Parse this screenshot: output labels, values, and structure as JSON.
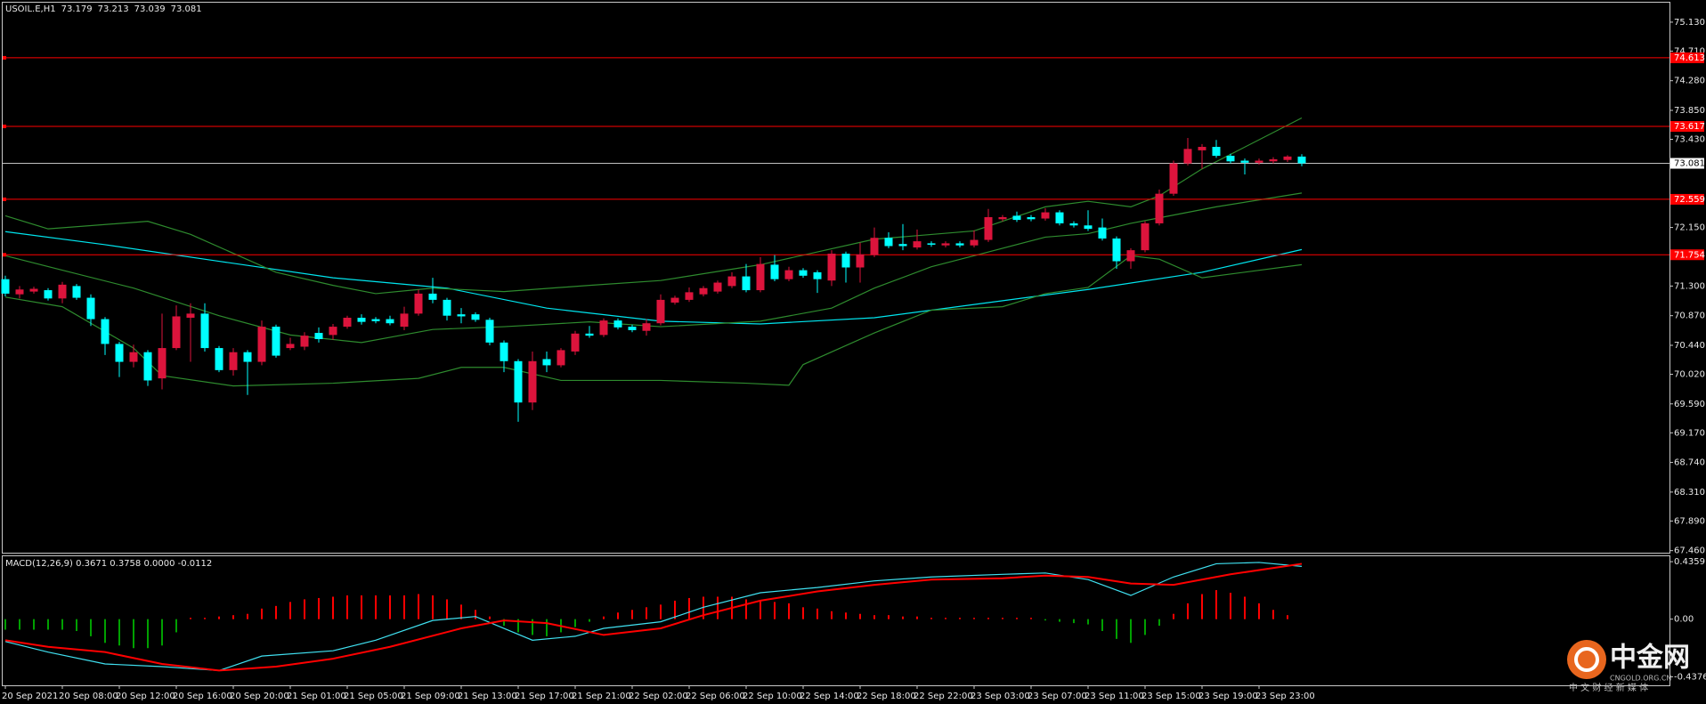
{
  "chart_data": {
    "type": "candlestick",
    "symbol": "USOIL.E,H1",
    "categories": [
      "20 Sep 2021",
      null,
      null,
      null,
      "20 Sep 08:00",
      null,
      null,
      null,
      "20 Sep 12:00",
      null,
      null,
      null,
      "20 Sep 16:00",
      null,
      null,
      null,
      "20 Sep 20:00",
      null,
      null,
      null,
      "21 Sep 01:00",
      null,
      null,
      null,
      "21 Sep 05:00",
      null,
      null,
      null,
      "21 Sep 09:00",
      null,
      null,
      null,
      "21 Sep 13:00",
      null,
      null,
      null,
      "21 Sep 17:00",
      null,
      null,
      null,
      "21 Sep 21:00",
      null,
      null,
      null,
      "22 Sep 02:00",
      null,
      null,
      null,
      "22 Sep 06:00",
      null,
      null,
      null,
      "22 Sep 10:00",
      null,
      null,
      null,
      "22 Sep 14:00",
      null,
      null,
      null,
      "22 Sep 18:00",
      null,
      null,
      null,
      "22 Sep 22:00",
      null,
      null,
      null,
      "23 Sep 03:00",
      null,
      null,
      null,
      "23 Sep 07:00",
      null,
      null,
      null,
      "23 Sep 11:00",
      null,
      null,
      null,
      "23 Sep 15:00",
      null,
      null,
      null,
      "23 Sep 19:00",
      null,
      null,
      null,
      "23 Sep 23:00",
      null,
      null,
      null
    ],
    "open": [
      71.4,
      71.18,
      71.22,
      71.24,
      71.12,
      71.3,
      71.13,
      70.82,
      70.46,
      70.2,
      70.34,
      69.96,
      70.4,
      70.84,
      70.9,
      70.4,
      70.08,
      70.34,
      70.2,
      70.71,
      70.4,
      70.42,
      70.62,
      70.59,
      70.71,
      70.84,
      70.82,
      70.82,
      70.71,
      70.9,
      71.19,
      71.1,
      70.89,
      70.89,
      70.81,
      70.48,
      70.21,
      69.61,
      70.24,
      70.15,
      70.35,
      70.61,
      70.59,
      70.8,
      70.71,
      70.65,
      70.76,
      71.06,
      71.1,
      71.18,
      71.22,
      71.3,
      71.44,
      71.24,
      71.61,
      71.4,
      71.53,
      71.5,
      71.38,
      71.77,
      71.57,
      71.75,
      72.0,
      71.91,
      71.86,
      71.92,
      71.89,
      71.92,
      71.89,
      71.97,
      72.27,
      72.32,
      72.3,
      72.28,
      72.37,
      72.21,
      72.18,
      72.15,
      71.99,
      71.66,
      71.82,
      72.21,
      72.64,
      73.08,
      73.27,
      73.32,
      73.19,
      73.12,
      73.09,
      73.11,
      73.13,
      73.179
    ],
    "high": [
      71.45,
      71.3,
      71.29,
      71.27,
      71.36,
      71.33,
      71.18,
      70.85,
      70.49,
      70.45,
      70.37,
      70.9,
      71.02,
      71.05,
      71.05,
      70.43,
      70.4,
      70.37,
      70.8,
      70.74,
      70.55,
      70.63,
      70.7,
      70.75,
      70.87,
      70.89,
      70.85,
      70.87,
      71.0,
      71.25,
      71.42,
      71.13,
      70.98,
      70.92,
      70.84,
      70.51,
      70.24,
      70.35,
      70.35,
      70.4,
      70.65,
      70.72,
      70.83,
      70.83,
      70.74,
      70.82,
      71.18,
      71.16,
      71.28,
      71.3,
      71.38,
      71.5,
      71.62,
      71.72,
      71.75,
      71.58,
      71.56,
      71.53,
      71.82,
      71.8,
      71.93,
      72.15,
      72.08,
      72.2,
      72.12,
      71.95,
      71.95,
      71.95,
      72.11,
      72.42,
      72.33,
      72.38,
      72.33,
      72.43,
      72.4,
      72.24,
      72.4,
      72.28,
      72.02,
      71.85,
      72.24,
      72.7,
      73.12,
      73.45,
      73.36,
      73.42,
      73.22,
      73.15,
      73.15,
      73.17,
      73.2,
      73.213
    ],
    "low": [
      71.15,
      71.12,
      71.19,
      71.09,
      71.05,
      71.1,
      70.72,
      70.3,
      69.98,
      70.12,
      69.85,
      69.8,
      70.37,
      70.2,
      70.35,
      70.05,
      70.0,
      69.72,
      70.15,
      70.26,
      70.37,
      70.37,
      70.48,
      70.52,
      70.68,
      70.74,
      70.76,
      70.73,
      70.66,
      70.87,
      71.05,
      70.8,
      70.76,
      70.78,
      70.44,
      70.05,
      69.33,
      69.5,
      70.05,
      70.12,
      70.3,
      70.55,
      70.56,
      70.67,
      70.63,
      70.58,
      70.73,
      71.03,
      71.07,
      71.15,
      71.19,
      71.27,
      71.21,
      71.21,
      71.37,
      71.37,
      71.42,
      71.2,
      71.3,
      71.35,
      71.35,
      71.72,
      71.85,
      71.82,
      71.83,
      71.87,
      71.86,
      71.86,
      71.86,
      71.94,
      72.24,
      72.23,
      72.24,
      72.25,
      72.18,
      72.15,
      72.1,
      71.96,
      71.55,
      71.55,
      71.79,
      72.18,
      72.61,
      73.05,
      73.0,
      73.16,
      73.08,
      72.92,
      73.06,
      73.08,
      73.1,
      73.039
    ],
    "close": [
      71.19,
      71.25,
      71.26,
      71.12,
      71.32,
      71.13,
      70.82,
      70.46,
      70.2,
      70.34,
      69.93,
      70.4,
      70.86,
      70.9,
      70.4,
      70.08,
      70.34,
      70.2,
      70.71,
      70.29,
      70.46,
      70.58,
      70.53,
      70.71,
      70.84,
      70.78,
      70.79,
      70.76,
      70.9,
      71.19,
      71.1,
      70.87,
      70.86,
      70.81,
      70.48,
      70.21,
      69.61,
      70.21,
      70.15,
      70.37,
      70.61,
      70.58,
      70.8,
      70.7,
      70.66,
      70.76,
      71.1,
      71.13,
      71.21,
      71.27,
      71.35,
      71.44,
      71.24,
      71.62,
      71.4,
      71.53,
      71.45,
      71.4,
      71.77,
      71.57,
      71.76,
      72.0,
      71.88,
      71.88,
      71.95,
      71.9,
      71.92,
      71.89,
      71.97,
      72.3,
      72.3,
      72.26,
      72.27,
      72.37,
      72.21,
      72.18,
      72.13,
      71.99,
      71.66,
      71.82,
      72.21,
      72.64,
      73.08,
      73.29,
      73.32,
      73.19,
      73.11,
      73.09,
      73.12,
      73.14,
      73.18,
      73.081
    ],
    "up_color": "#dc143c",
    "down_color": "#00ffff",
    "current_color": "#c0c0c0",
    "ylim": [
      67.43,
      75.4
    ],
    "yticks": [
      {
        "value": 75.13,
        "label": "75.130"
      },
      {
        "value": 74.71,
        "label": "74.710"
      },
      {
        "value": 74.28,
        "label": "74.280"
      },
      {
        "value": 73.85,
        "label": "73.850"
      },
      {
        "value": 73.43,
        "label": "73.430"
      },
      {
        "value": 72.15,
        "label": "72.150"
      },
      {
        "value": 71.3,
        "label": "71.300"
      },
      {
        "value": 70.87,
        "label": "70.870"
      },
      {
        "value": 70.44,
        "label": "70.440"
      },
      {
        "value": 70.02,
        "label": "70.020"
      },
      {
        "value": 69.59,
        "label": "69.590"
      },
      {
        "value": 69.17,
        "label": "69.170"
      },
      {
        "value": 68.74,
        "label": "68.740"
      },
      {
        "value": 68.31,
        "label": "68.310"
      },
      {
        "value": 67.89,
        "label": "67.890"
      },
      {
        "value": 67.46,
        "label": "67.460"
      }
    ],
    "levels": {
      "color": "#ff0000",
      "values": [
        74.613,
        73.617,
        72.559,
        71.754
      ]
    },
    "overlays": [
      {
        "color": "#00e5ee",
        "x": [
          0,
          7,
          15,
          23,
          31,
          38,
          46,
          53,
          61,
          69,
          76,
          84,
          91
        ],
        "values": [
          72.09,
          71.9,
          71.66,
          71.42,
          71.27,
          70.98,
          70.79,
          70.75,
          70.84,
          71.06,
          71.25,
          71.5,
          71.83
        ]
      },
      {
        "color": "#2e8b2e",
        "x": [
          0,
          3,
          10,
          13,
          19,
          23,
          26,
          30,
          35,
          41,
          46,
          53,
          61,
          68,
          73,
          76,
          79,
          81,
          84,
          91
        ],
        "values": [
          72.32,
          72.13,
          72.24,
          72.05,
          71.5,
          71.31,
          71.19,
          71.27,
          71.22,
          71.31,
          71.38,
          71.61,
          71.98,
          72.1,
          72.45,
          72.53,
          72.45,
          72.61,
          73.0,
          73.74
        ]
      },
      {
        "color": "#2e8b2e",
        "x": [
          0,
          4,
          9,
          15,
          20,
          25,
          30,
          35,
          41,
          46,
          53,
          58,
          61,
          65,
          68,
          73,
          76,
          79,
          81,
          85,
          91
        ],
        "values": [
          71.74,
          71.53,
          71.27,
          70.87,
          70.59,
          70.48,
          70.67,
          70.71,
          70.78,
          70.71,
          70.79,
          70.98,
          71.27,
          71.58,
          71.74,
          72.01,
          72.06,
          72.21,
          72.29,
          72.45,
          72.65
        ]
      },
      {
        "color": "#2e8b2e",
        "x": [
          0,
          4,
          9,
          11,
          16,
          23,
          29,
          32,
          35,
          39,
          46,
          52,
          55,
          56,
          61,
          65,
          70,
          73,
          76,
          79,
          81,
          84,
          91
        ],
        "values": [
          71.14,
          71.0,
          70.4,
          70.0,
          69.85,
          69.89,
          69.96,
          70.12,
          70.12,
          69.93,
          69.93,
          69.89,
          69.86,
          70.16,
          70.62,
          70.95,
          71.0,
          71.19,
          71.28,
          71.74,
          71.69,
          71.42,
          71.61
        ]
      }
    ],
    "macd": {
      "title": "MACD(12,26,9) 0.3671 0.3758 0.0000 -0.0112",
      "ylim": [
        -0.502,
        0.477
      ],
      "yticks": [
        {
          "value": 0.4359,
          "label": "0.4359"
        },
        {
          "value": 0,
          "label": "0.00"
        },
        {
          "value": -0.4376,
          "label": "-0.4376"
        }
      ],
      "up_color": "#ff0000",
      "down_color": "#00a000",
      "histogram": [
        -0.08,
        -0.08,
        -0.08,
        -0.08,
        -0.08,
        -0.09,
        -0.13,
        -0.18,
        -0.2,
        -0.22,
        -0.22,
        -0.2,
        -0.1,
        0.01,
        0.01,
        0.02,
        0.03,
        0.04,
        0.08,
        0.1,
        0.13,
        0.15,
        0.16,
        0.17,
        0.18,
        0.18,
        0.18,
        0.18,
        0.18,
        0.19,
        0.18,
        0.15,
        0.11,
        0.07,
        0.02,
        -0.05,
        -0.1,
        -0.12,
        -0.13,
        -0.1,
        -0.06,
        -0.02,
        0.02,
        0.05,
        0.07,
        0.09,
        0.11,
        0.14,
        0.16,
        0.17,
        0.17,
        0.17,
        0.15,
        0.14,
        0.13,
        0.12,
        0.09,
        0.08,
        0.06,
        0.05,
        0.04,
        0.03,
        0.03,
        0.02,
        0.02,
        0.01,
        0.01,
        0.01,
        0.01,
        0.01,
        0.01,
        0.01,
        0.01,
        -0.01,
        -0.02,
        -0.03,
        -0.04,
        -0.09,
        -0.15,
        -0.18,
        -0.12,
        -0.05,
        0.04,
        0.12,
        0.19,
        0.22,
        0.2,
        0.17,
        0.12,
        0.07,
        0.03,
        0
      ],
      "lines": [
        {
          "color": "#40e0f0",
          "x": [
            0,
            3,
            7,
            11,
            15,
            18,
            23,
            26,
            30,
            33,
            35,
            37,
            40,
            42,
            46,
            49,
            53,
            57,
            61,
            65,
            70,
            73,
            76,
            79,
            82,
            85,
            88,
            91
          ],
          "values": [
            -0.17,
            -0.25,
            -0.34,
            -0.36,
            -0.39,
            -0.28,
            -0.24,
            -0.16,
            -0.01,
            0.02,
            -0.07,
            -0.16,
            -0.13,
            -0.07,
            -0.02,
            0.09,
            0.2,
            0.24,
            0.29,
            0.32,
            0.34,
            0.35,
            0.3,
            0.18,
            0.32,
            0.42,
            0.43,
            0.4
          ]
        },
        {
          "color": "#ff0000",
          "x": [
            0,
            3,
            7,
            11,
            15,
            19,
            23,
            27,
            32,
            35,
            38,
            42,
            46,
            49,
            53,
            57,
            61,
            65,
            70,
            73,
            76,
            79,
            82,
            86,
            91
          ],
          "values": [
            -0.16,
            -0.21,
            -0.25,
            -0.34,
            -0.39,
            -0.36,
            -0.3,
            -0.21,
            -0.07,
            -0.01,
            -0.03,
            -0.12,
            -0.07,
            0.03,
            0.14,
            0.21,
            0.26,
            0.3,
            0.31,
            0.33,
            0.32,
            0.27,
            0.26,
            0.34,
            0.42
          ]
        }
      ]
    },
    "watermark": {
      "brand": "中金网",
      "site": "CNGOLD.ORG.CN",
      "slogan": "中 文 财 经 新 媒 体"
    }
  }
}
